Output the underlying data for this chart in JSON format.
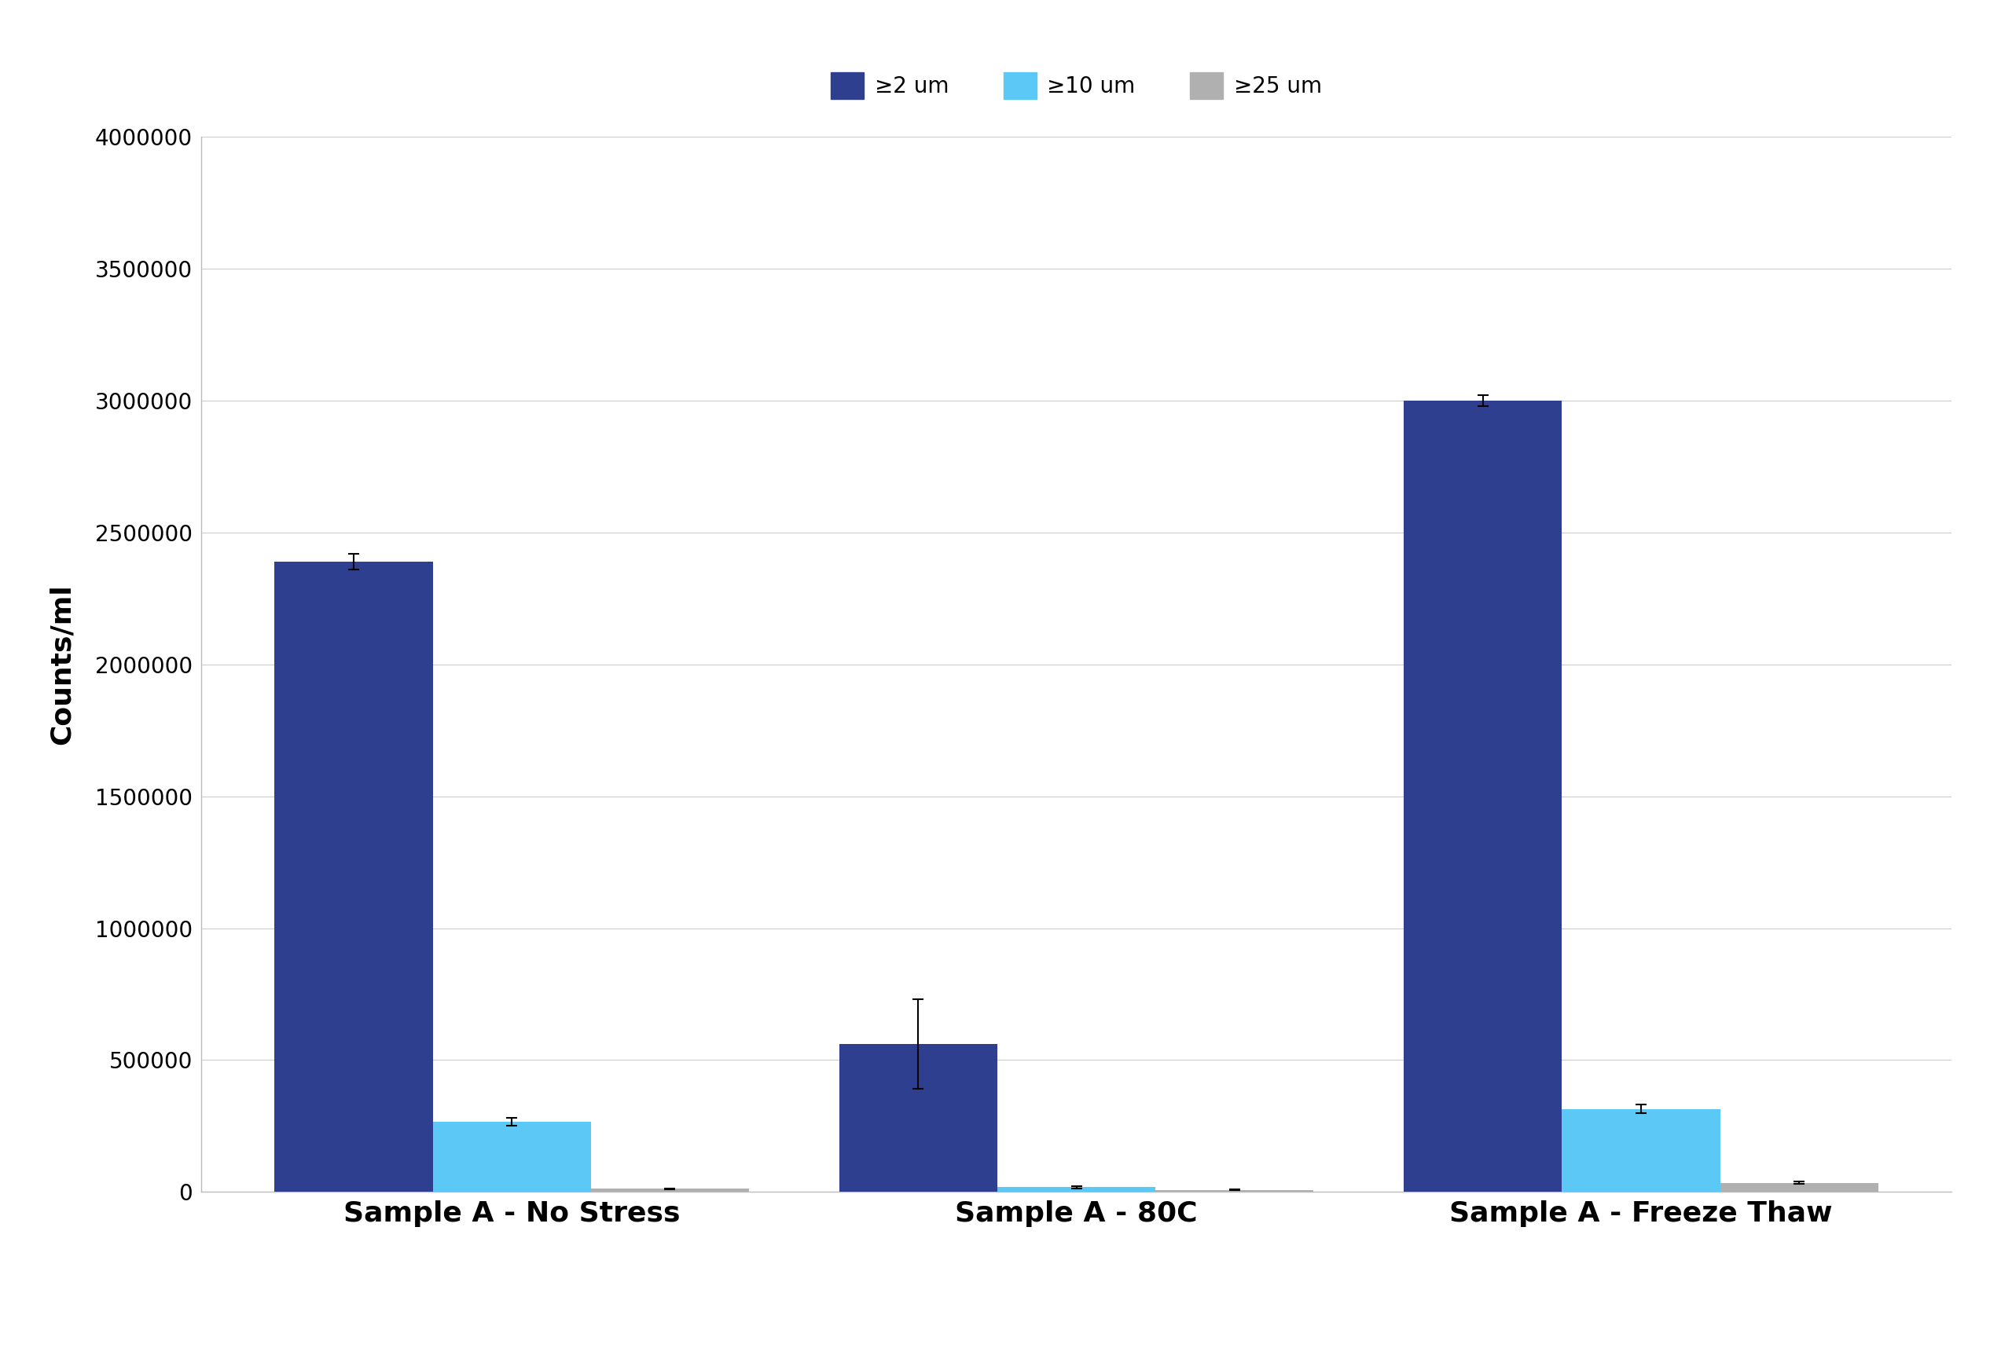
{
  "categories": [
    "Sample A - No Stress",
    "Sample A - 80C",
    "Sample A - Freeze Thaw"
  ],
  "series": [
    {
      "label": "≥2 um",
      "color": "#2e3f8f",
      "values": [
        2390000,
        560000,
        3000000
      ],
      "errors": [
        30000,
        170000,
        20000
      ]
    },
    {
      "label": "≥10 um",
      "color": "#5bc8f5",
      "values": [
        265000,
        18000,
        315000
      ],
      "errors": [
        15000,
        5000,
        15000
      ]
    },
    {
      "label": "≥25 um",
      "color": "#b0b0b0",
      "values": [
        12000,
        8000,
        35000
      ],
      "errors": [
        2000,
        1000,
        5000
      ]
    }
  ],
  "ylabel": "Counts/ml",
  "ylim": [
    0,
    4000000
  ],
  "yticks": [
    0,
    500000,
    1000000,
    1500000,
    2000000,
    2500000,
    3000000,
    3500000,
    4000000
  ],
  "background_color": "#ffffff",
  "bar_width": 0.28,
  "legend_fontsize": 20,
  "tick_fontsize": 20,
  "label_fontsize": 26,
  "xlabel_fontsize": 26
}
